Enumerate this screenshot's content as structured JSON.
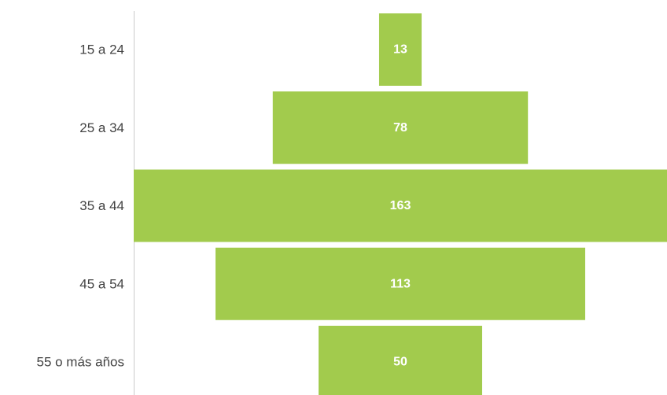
{
  "chart_data": {
    "type": "bar",
    "orientation": "horizontal-centered",
    "categories": [
      "15 a 24",
      "25 a 34",
      "35 a 44",
      "45 a 54",
      "55 o más años"
    ],
    "values": [
      13,
      78,
      163,
      113,
      50
    ],
    "data_labels": [
      "13",
      "78",
      "163",
      "113",
      "50"
    ],
    "title": "",
    "xlabel": "",
    "ylabel": "",
    "legend": "none",
    "grid": false,
    "colors": {
      "bar": "#a2cb4d",
      "axis": "#cccccc",
      "category_text": "#444444",
      "value_text": "#ffffff"
    }
  }
}
